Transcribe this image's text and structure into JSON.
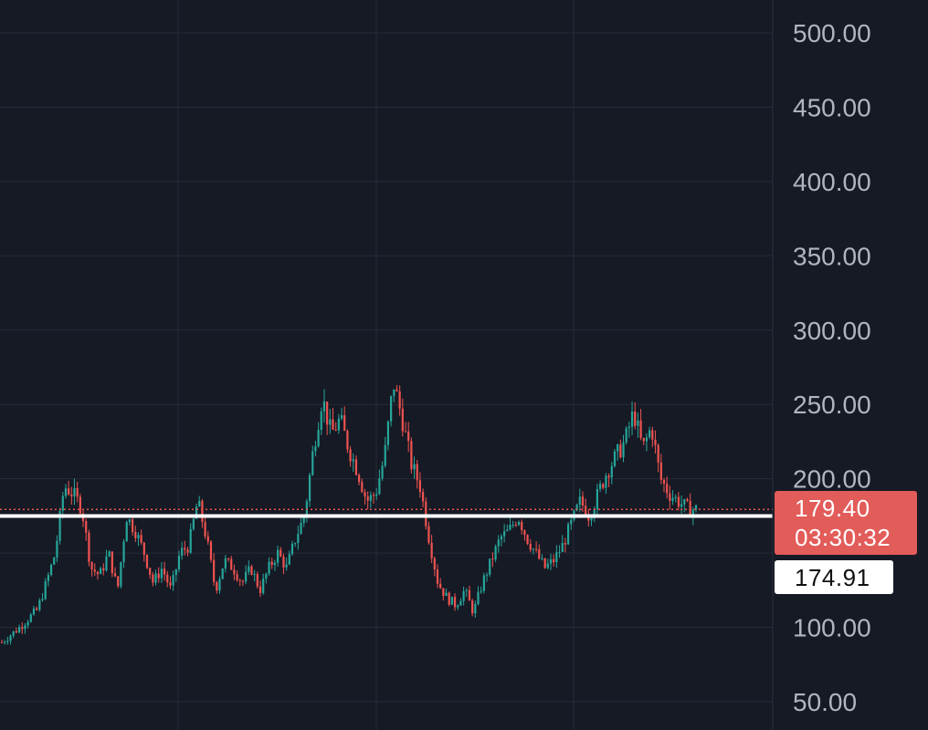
{
  "colors": {
    "background": "#161a25",
    "grid": "#262b38",
    "axis_text": "#b2b5be",
    "up": "#26a69a",
    "down": "#ef5350",
    "last_price_tag": "#e25c5a",
    "reference_line": "#ffffff"
  },
  "chart_data": {
    "type": "candlestick",
    "y_axis": {
      "position": "right",
      "scale": "log",
      "ticks": [
        "500.00",
        "450.00",
        "400.00",
        "350.00",
        "300.00",
        "250.00",
        "200.00",
        "100.00",
        "50.00"
      ],
      "tick_values": [
        500,
        450,
        400,
        350,
        300,
        250,
        200,
        100,
        50
      ]
    },
    "grid": true,
    "series": [
      {
        "type": "candlestick",
        "points": [
          [
            0,
            90
          ],
          [
            2,
            100
          ],
          [
            4,
            112
          ],
          [
            5,
            130
          ],
          [
            6,
            150
          ],
          [
            7,
            195
          ],
          [
            8,
            190
          ],
          [
            9,
            180
          ],
          [
            10,
            140
          ],
          [
            11,
            135
          ],
          [
            12,
            150
          ],
          [
            13,
            125
          ],
          [
            14,
            175
          ],
          [
            15,
            165
          ],
          [
            16,
            150
          ],
          [
            17,
            130
          ],
          [
            18,
            140
          ],
          [
            19,
            125
          ],
          [
            20,
            150
          ],
          [
            21,
            155
          ],
          [
            22,
            185
          ],
          [
            23,
            160
          ],
          [
            24,
            125
          ],
          [
            25,
            145
          ],
          [
            26,
            140
          ],
          [
            27,
            130
          ],
          [
            28,
            140
          ],
          [
            29,
            125
          ],
          [
            30,
            140
          ],
          [
            31,
            150
          ],
          [
            32,
            140
          ],
          [
            33,
            160
          ],
          [
            34,
            175
          ],
          [
            35,
            220
          ],
          [
            36,
            255
          ],
          [
            37,
            230
          ],
          [
            38,
            240
          ],
          [
            39,
            220
          ],
          [
            40,
            205
          ],
          [
            41,
            185
          ],
          [
            42,
            190
          ],
          [
            43,
            215
          ],
          [
            44,
            265
          ],
          [
            45,
            240
          ],
          [
            46,
            210
          ],
          [
            47,
            195
          ],
          [
            48,
            160
          ],
          [
            49,
            130
          ],
          [
            50,
            120
          ],
          [
            51,
            115
          ],
          [
            52,
            125
          ],
          [
            53,
            110
          ],
          [
            54,
            130
          ],
          [
            55,
            145
          ],
          [
            56,
            160
          ],
          [
            57,
            165
          ],
          [
            58,
            175
          ],
          [
            59,
            160
          ],
          [
            60,
            150
          ],
          [
            61,
            140
          ],
          [
            62,
            145
          ],
          [
            63,
            155
          ],
          [
            64,
            170
          ],
          [
            65,
            185
          ],
          [
            66,
            175
          ],
          [
            67,
            190
          ],
          [
            68,
            205
          ],
          [
            69,
            215
          ],
          [
            70,
            225
          ],
          [
            71,
            245
          ],
          [
            72,
            220
          ],
          [
            73,
            235
          ],
          [
            74,
            200
          ],
          [
            75,
            190
          ],
          [
            76,
            185
          ],
          [
            77,
            180
          ],
          [
            78,
            179.4
          ]
        ],
        "n_slots": 79
      }
    ],
    "last_price": "179.40",
    "last_price_value": 179.4,
    "countdown": "03:30:32",
    "reference_price": "174.91",
    "reference_price_value": 174.91
  }
}
